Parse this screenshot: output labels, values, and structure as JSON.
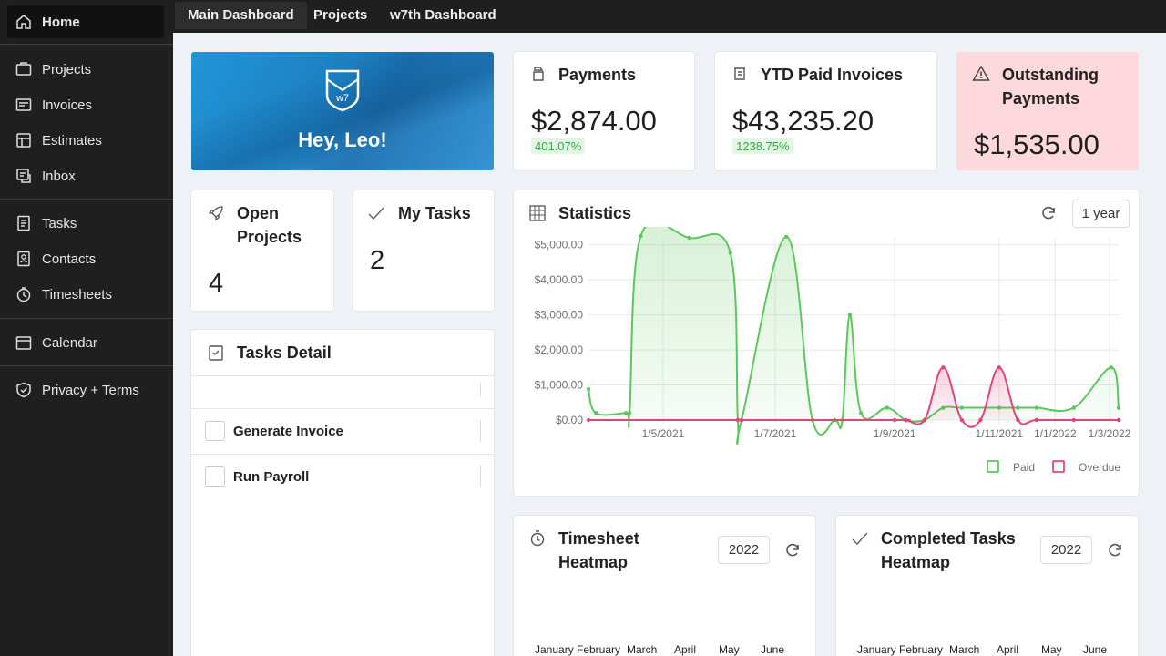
{
  "sidebar": {
    "items": [
      {
        "label": "Home",
        "icon": "home-icon"
      },
      {
        "label": "Projects",
        "icon": "projects-icon"
      },
      {
        "label": "Invoices",
        "icon": "invoices-icon"
      },
      {
        "label": "Estimates",
        "icon": "estimates-icon"
      },
      {
        "label": "Inbox",
        "icon": "inbox-icon"
      },
      {
        "label": "Tasks",
        "icon": "tasks-icon"
      },
      {
        "label": "Contacts",
        "icon": "contacts-icon"
      },
      {
        "label": "Timesheets",
        "icon": "timesheets-icon"
      },
      {
        "label": "Calendar",
        "icon": "calendar-icon"
      },
      {
        "label": "Privacy + Terms",
        "icon": "shield-icon"
      }
    ]
  },
  "tabs": [
    {
      "label": "Main Dashboard",
      "active": true
    },
    {
      "label": "Projects",
      "active": false
    },
    {
      "label": "w7th Dashboard",
      "active": false
    }
  ],
  "hero": {
    "greeting": "Hey, Leo!",
    "logo_text": "w7"
  },
  "payments": {
    "title": "Payments",
    "value": "$2,874.00",
    "pct": "401.07%"
  },
  "ytd": {
    "title": "YTD Paid Invoices",
    "value": "$43,235.20",
    "pct": "1238.75%"
  },
  "outstanding": {
    "title_line1": "Outstanding",
    "title_line2": "Payments",
    "value": "$1,535.00",
    "bg": "#fdd8dc"
  },
  "open_projects": {
    "title_line1": "Open",
    "title_line2": "Projects",
    "value": "4"
  },
  "my_tasks": {
    "title": "My Tasks",
    "value": "2"
  },
  "tasks_detail": {
    "title": "Tasks Detail",
    "items": [
      "Generate Invoice",
      "Run Payroll"
    ]
  },
  "statistics": {
    "title": "Statistics",
    "range_button": "1 year"
  },
  "timesheet": {
    "title_line1": "Timesheet",
    "title_line2": "Heatmap",
    "year": "2022"
  },
  "completed": {
    "title_line1": "Completed Tasks",
    "title_line2": "Heatmap",
    "year": "2022"
  },
  "heatmap_months": [
    "January",
    "February",
    "March",
    "April",
    "May",
    "June"
  ],
  "chart_data": {
    "type": "area",
    "xlabel": "",
    "ylabel": "",
    "x_ticks": [
      "1/5/2021",
      "1/7/2021",
      "1/9/2021",
      "1/11/2021",
      "1/1/2022",
      "1/3/2022"
    ],
    "y_ticks": [
      "$0.00",
      "$1,000.00",
      "$2,000.00",
      "$3,000.00",
      "$4,000.00",
      "$5,000.00"
    ],
    "ylim": [
      0,
      5200
    ],
    "grid": true,
    "legend": "bottom-right",
    "colors": {
      "paid": "#5cc75c",
      "overdue": "#e0457a"
    },
    "series": [
      {
        "name": "Paid",
        "x": [
          0.0,
          0.2,
          1.0,
          1.1,
          1.4,
          2.7,
          3.8,
          4.0,
          4.1,
          5.3,
          6.0,
          6.6,
          6.8,
          7.0,
          7.3,
          8.0,
          8.5,
          9.0,
          9.5,
          10.0,
          11.0,
          11.5,
          12.0,
          13.0,
          14.0,
          14.2
        ],
        "y": [
          880,
          200,
          200,
          200,
          5250,
          5200,
          4770,
          0,
          0,
          5230,
          0,
          0,
          0,
          3000,
          200,
          350,
          0,
          0,
          350,
          350,
          350,
          350,
          350,
          350,
          1500,
          350
        ]
      },
      {
        "name": "Overdue",
        "x": [
          0.0,
          4.0,
          4.1,
          8.2,
          8.5,
          9.0,
          9.5,
          10.0,
          10.5,
          11.0,
          11.5,
          12.0,
          13.0,
          14.2
        ],
        "y": [
          0,
          0,
          0,
          0,
          0,
          0,
          1500,
          0,
          0,
          1500,
          0,
          0,
          0,
          0
        ]
      }
    ]
  }
}
